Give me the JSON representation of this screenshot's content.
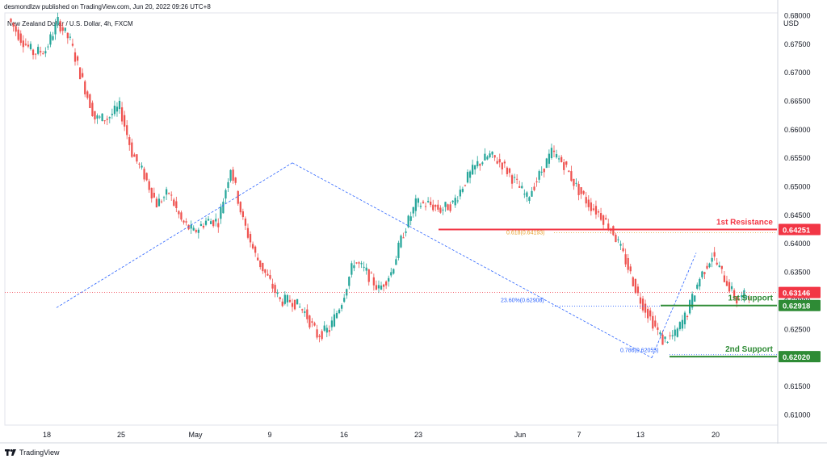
{
  "header": {
    "publisher_line": "desmondlzw published on TradingView.com, Jun 20, 2022 09:26 UTC+8"
  },
  "footer": {
    "brand": "TradingView",
    "logo_icon": "tradingview-logo-icon"
  },
  "chart_data": {
    "type": "candlestick",
    "title": "New Zealand Dollar / U.S. Dollar, 4h, FXCM",
    "currency_label": "USD",
    "ylim": [
      0.6082,
      0.6805
    ],
    "y_ticks": [
      "0.68000",
      "0.67500",
      "0.67000",
      "0.66500",
      "0.66000",
      "0.65500",
      "0.65000",
      "0.64500",
      "0.64000",
      "0.63500",
      "0.63000",
      "0.62500",
      "0.62000",
      "0.61500",
      "0.61000"
    ],
    "x_ticks": [
      "18",
      "25",
      "May",
      "9",
      "16",
      "23",
      "Jun",
      "7",
      "13",
      "20"
    ],
    "colors": {
      "up": "#26a69a",
      "down": "#ef5350",
      "resistance": "#f23645",
      "support": "#2e8b35",
      "fib": "#2962ff",
      "fib_orange": "#e69e28",
      "current": "#f23645"
    },
    "price_path": [
      [
        0.6795,
        0.677
      ],
      [
        0.676,
        0.6755
      ],
      [
        0.6735,
        0.6725
      ],
      [
        0.674,
        0.6765
      ],
      [
        0.679,
        0.679
      ],
      [
        0.6755,
        0.674
      ],
      [
        0.6685,
        0.666
      ],
      [
        0.662,
        0.66
      ],
      [
        0.662,
        0.664
      ],
      [
        0.664,
        0.66
      ],
      [
        0.656,
        0.654
      ],
      [
        0.652,
        0.649
      ],
      [
        0.647,
        0.647
      ],
      [
        0.649,
        0.647
      ],
      [
        0.644,
        0.643
      ],
      [
        0.642,
        0.643
      ],
      [
        0.644,
        0.645
      ],
      [
        0.644,
        0.6555
      ],
      [
        0.6535,
        0.6485
      ],
      [
        0.644,
        0.64
      ],
      [
        0.638,
        0.637
      ],
      [
        0.634,
        0.631
      ],
      [
        0.63,
        0.629
      ],
      [
        0.63,
        0.629
      ],
      [
        0.628,
        0.626
      ],
      [
        0.624,
        0.623
      ],
      [
        0.625,
        0.626
      ],
      [
        0.63,
        0.632
      ],
      [
        0.637,
        0.636
      ],
      [
        0.635,
        0.634
      ],
      [
        0.632,
        0.631
      ],
      [
        0.635,
        0.64
      ],
      [
        0.642,
        0.644
      ],
      [
        0.647,
        0.648
      ],
      [
        0.647,
        0.646
      ],
      [
        0.646,
        0.644
      ],
      [
        0.647,
        0.649
      ],
      [
        0.651,
        0.652
      ],
      [
        0.654,
        0.655
      ],
      [
        0.6555,
        0.656
      ],
      [
        0.654,
        0.653
      ],
      [
        0.651,
        0.65
      ],
      [
        0.648,
        0.647
      ],
      [
        0.652,
        0.654
      ],
      [
        0.656,
        0.6565
      ],
      [
        0.654,
        0.652
      ],
      [
        0.65,
        0.649
      ],
      [
        0.647,
        0.646
      ],
      [
        0.645,
        0.644
      ],
      [
        0.642,
        0.64
      ],
      [
        0.637,
        0.634
      ],
      [
        0.631,
        0.629
      ],
      [
        0.627,
        0.625
      ],
      [
        0.623,
        0.621
      ],
      [
        0.624,
        0.626
      ],
      [
        0.628,
        0.63
      ],
      [
        0.634,
        0.637
      ],
      [
        0.638,
        0.636
      ],
      [
        0.634,
        0.632
      ],
      [
        0.63,
        0.6314
      ]
    ],
    "levels": [
      {
        "name": "1st Resistance",
        "value": 0.64251,
        "price_label": "0.64251",
        "color": "#f23645"
      },
      {
        "name": "1st Support",
        "value": 0.62918,
        "price_label": "0.62918",
        "color": "#2e8b35"
      },
      {
        "name": "2nd Support",
        "value": 0.6202,
        "price_label": "0.62020",
        "color": "#2e8b35"
      }
    ],
    "current_price": {
      "value": 0.63146,
      "label": "0.63146"
    },
    "fib_labels": [
      {
        "text": "0.618(0.64193)",
        "value": 0.64193,
        "color": "#e69e28"
      },
      {
        "text": "23.60%(0.62908)",
        "value": 0.62908,
        "color": "#2962ff"
      },
      {
        "text": "0.786(0.62055)",
        "value": 0.62055,
        "color": "#2962ff"
      }
    ]
  }
}
